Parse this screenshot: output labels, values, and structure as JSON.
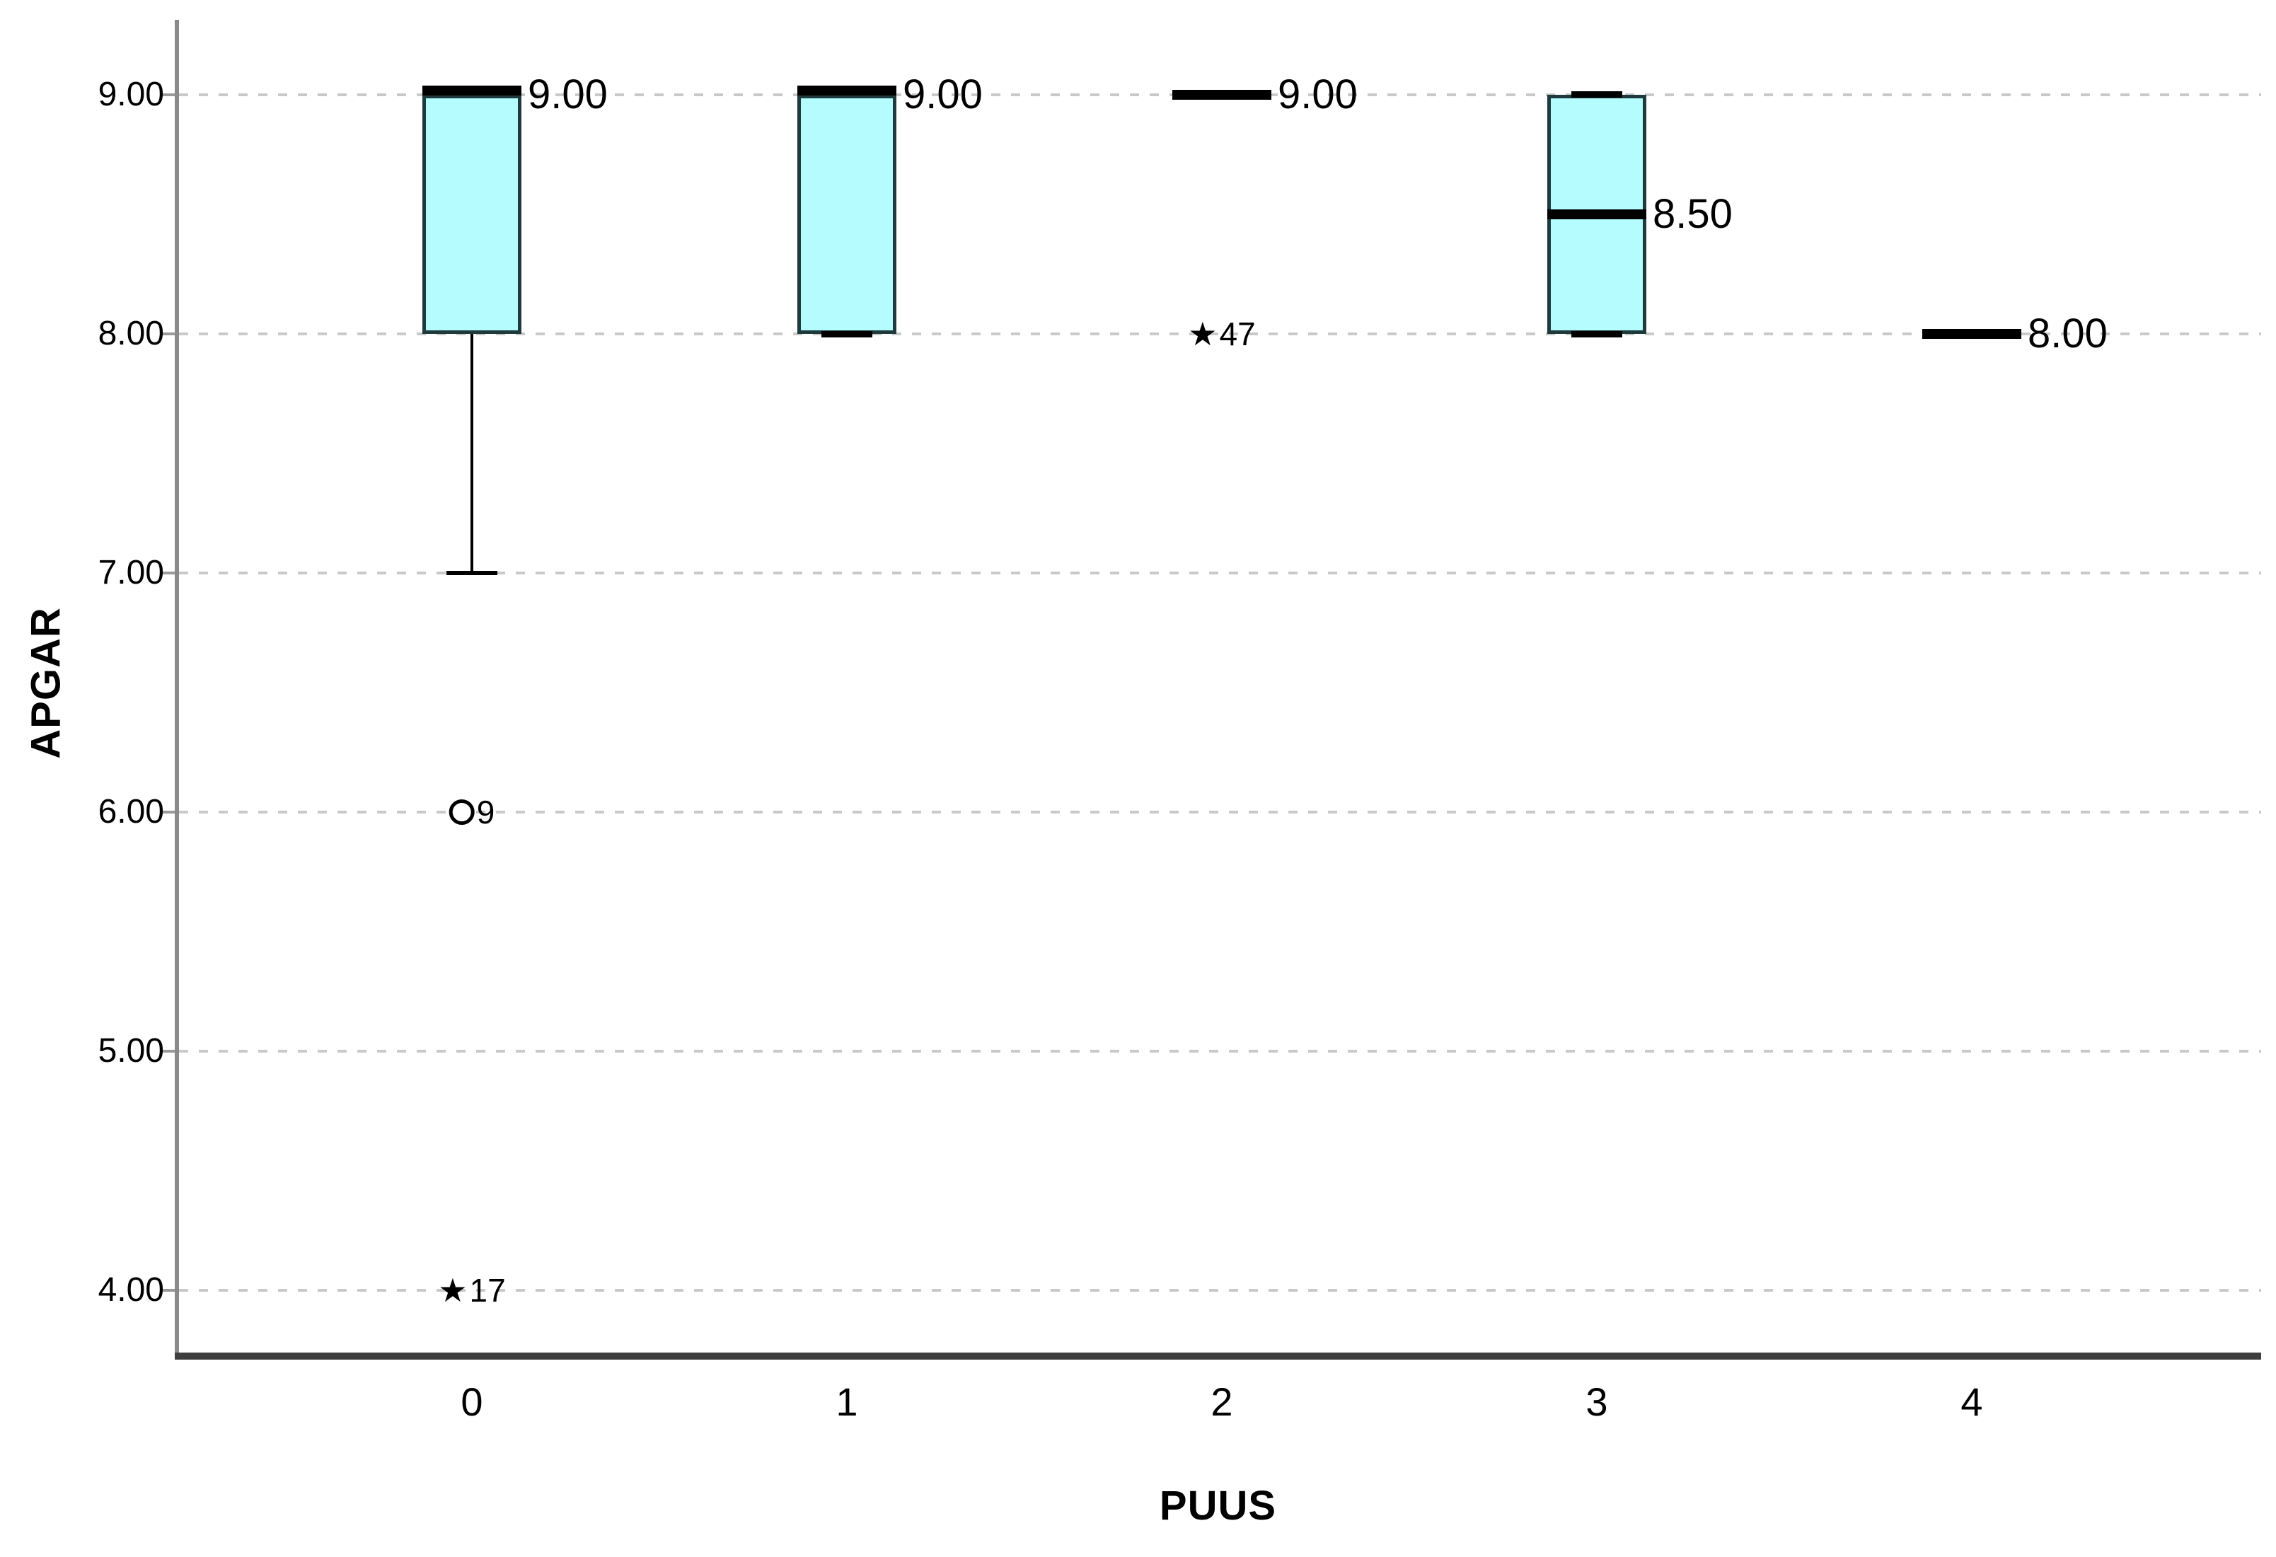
{
  "chart_data": {
    "type": "boxplot",
    "title": "",
    "xlabel": "PUUS",
    "ylabel": "APGAR",
    "ylim": [
      3.65,
      9.35
    ],
    "grid": "horizontal-dashed",
    "legend": "none",
    "yticks": [
      {
        "value": 9,
        "label": "9.00"
      },
      {
        "value": 8,
        "label": "8.00"
      },
      {
        "value": 7,
        "label": "7.00"
      },
      {
        "value": 6,
        "label": "6.00"
      },
      {
        "value": 5,
        "label": "5.00"
      },
      {
        "value": 4,
        "label": "4.00"
      }
    ],
    "categories": [
      "0",
      "1",
      "2",
      "3",
      "4"
    ],
    "boxes": [
      {
        "category": "0",
        "q1": 8,
        "median": 9,
        "q3": 9,
        "whisker_low": 7,
        "whisker_high": 9,
        "median_label": "9.00",
        "outliers": [
          {
            "marker": "circle",
            "value": 6,
            "case_label": "9"
          },
          {
            "marker": "star",
            "value": 4,
            "case_label": "17"
          }
        ]
      },
      {
        "category": "1",
        "q1": 8,
        "median": 9,
        "q3": 9,
        "whisker_low": 8,
        "whisker_high": 9,
        "median_label": "9.00",
        "outliers": []
      },
      {
        "category": "2",
        "q1": 9,
        "median": 9,
        "q3": 9,
        "whisker_low": 9,
        "whisker_high": 9,
        "median_label": "9.00",
        "outliers": [
          {
            "marker": "star",
            "value": 8,
            "case_label": "47"
          }
        ]
      },
      {
        "category": "3",
        "q1": 8,
        "median": 8.5,
        "q3": 9,
        "whisker_low": 8,
        "whisker_high": 9,
        "median_label": "8.50",
        "outliers": []
      },
      {
        "category": "4",
        "q1": 8,
        "median": 8,
        "q3": 8,
        "whisker_low": 8,
        "whisker_high": 8,
        "median_label": "8.00",
        "outliers": []
      }
    ],
    "colors": {
      "background": "#FFFFFF",
      "box_fill": "#B5FCFE",
      "box_border": "#1E3A3C",
      "median": "#000000",
      "grid": "#C9C9C9",
      "y_axis": "#8A8A8A",
      "x_axis": "#3E3E3E",
      "text": "#000000"
    },
    "star_glyph": "★"
  }
}
